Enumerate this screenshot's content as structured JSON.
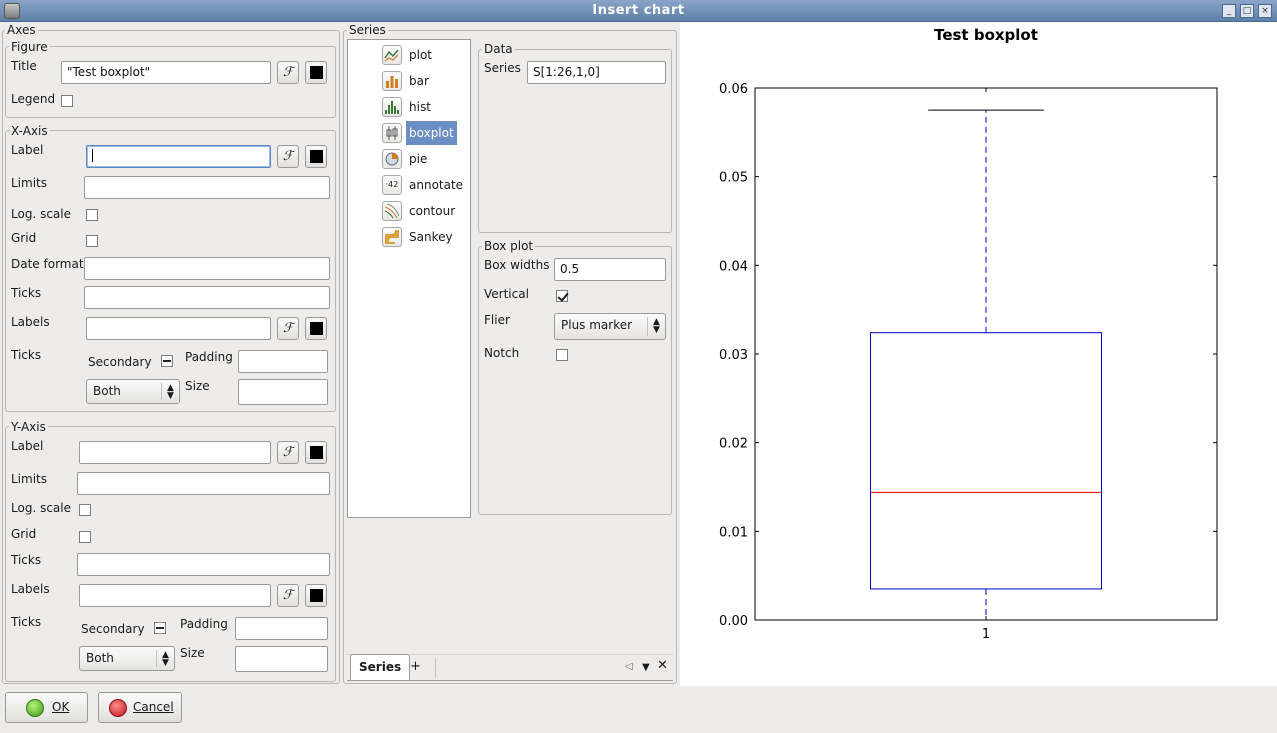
{
  "window": {
    "title": "Insert chart"
  },
  "axes": {
    "label": "Axes",
    "figure": {
      "label": "Figure",
      "title_label": "Title",
      "title_value": "\"Test boxplot\"",
      "legend_label": "Legend",
      "legend_checked": false
    },
    "x_axis": {
      "label": "X-Axis",
      "label_label": "Label",
      "label_value": "",
      "limits_label": "Limits",
      "limits_value": "",
      "log_scale_label": "Log. scale",
      "grid_label": "Grid",
      "date_format_label": "Date format",
      "date_format_value": "",
      "ticks_label": "Ticks",
      "ticks_value": "",
      "labels_label": "Labels",
      "labels_value": "",
      "ticks2_label": "Ticks",
      "secondary_label": "Secondary",
      "padding_label": "Padding",
      "padding_value": "",
      "size_label": "Size",
      "size_value": "",
      "which_value": "Both"
    },
    "y_axis": {
      "label": "Y-Axis",
      "label_label": "Label",
      "label_value": "",
      "limits_label": "Limits",
      "limits_value": "",
      "log_scale_label": "Log. scale",
      "grid_label": "Grid",
      "ticks_label": "Ticks",
      "ticks_value": "",
      "labels_label": "Labels",
      "labels_value": "",
      "ticks2_label": "Ticks",
      "secondary_label": "Secondary",
      "padding_label": "Padding",
      "padding_value": "",
      "size_label": "Size",
      "size_value": "",
      "which_value": "Both"
    },
    "function_glyph": "ℱ"
  },
  "series": {
    "label": "Series",
    "items": [
      {
        "label": "plot",
        "icon": "line-plot-icon"
      },
      {
        "label": "bar",
        "icon": "bar-chart-icon"
      },
      {
        "label": "hist",
        "icon": "histogram-icon"
      },
      {
        "label": "boxplot",
        "icon": "boxplot-icon",
        "selected": true
      },
      {
        "label": "pie",
        "icon": "pie-chart-icon"
      },
      {
        "label": "annotate",
        "icon": "annotate-icon"
      },
      {
        "label": "contour",
        "icon": "contour-icon"
      },
      {
        "label": "Sankey",
        "icon": "sankey-icon"
      }
    ],
    "data": {
      "label": "Data",
      "series_label": "Series",
      "series_value": "S[1:26,1,0]"
    },
    "boxplot": {
      "label": "Box plot",
      "box_widths_label": "Box widths",
      "box_widths_value": "0.5",
      "vertical_label": "Vertical",
      "vertical_checked": true,
      "flier_label": "Flier",
      "flier_value": "Plus marker",
      "notch_label": "Notch",
      "notch_checked": false
    },
    "tabs": {
      "active": "Series",
      "add": "+"
    }
  },
  "buttons": {
    "ok": "OK",
    "cancel": "Cancel"
  },
  "colors": {
    "box": "#0000cc",
    "median": "#dd0000",
    "selection": "#6b8fc4"
  },
  "chart_data": {
    "type": "boxplot",
    "title": "Test boxplot",
    "categories": [
      "1"
    ],
    "ylim": [
      0,
      0.06
    ],
    "yticks": [
      "0.00",
      "0.01",
      "0.02",
      "0.03",
      "0.04",
      "0.05",
      "0.06"
    ],
    "box": {
      "whisker_low": 0.0,
      "q1": 0.0035,
      "median": 0.0144,
      "q3": 0.0324,
      "whisker_high": 0.0575
    }
  }
}
